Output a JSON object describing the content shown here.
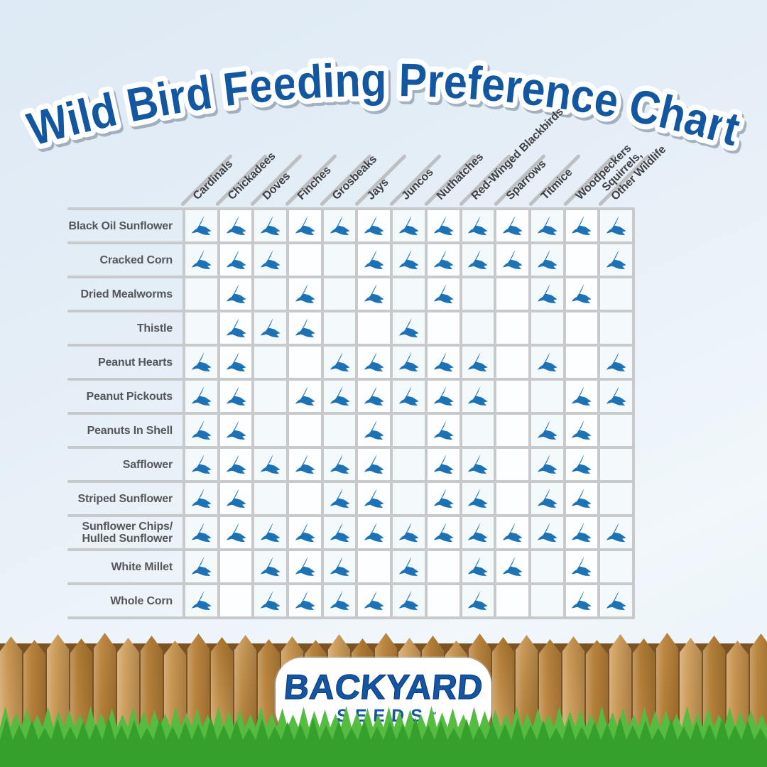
{
  "title": "Wild Bird Feeding Preference Chart",
  "logo": {
    "brand": "BACKYARD",
    "sub": "SEEDS",
    "trademark": "™"
  },
  "colors": {
    "title_blue": "#1257a0",
    "bird_blue": "#1c72b4",
    "grid_line": "#c7c9cb",
    "row_label_gray": "#55565a",
    "column_label_gray": "#3f4044",
    "logo_blue": "#1456a4",
    "grass_green_back": "#55bb41",
    "grass_green_front": "#35a02b",
    "sky_blue": "#e3edf6"
  },
  "chart_data": {
    "type": "heatmap",
    "title": "Wild Bird Feeding Preference Chart",
    "marker": "bird-icon",
    "marker_meaning": "bird icon in a cell = that species eats this food",
    "columns": [
      "Cardinals",
      "Chickadees",
      "Doves",
      "Finches",
      "Grosbeaks",
      "Jays",
      "Juncos",
      "Nuthatches",
      "Red-Winged Blackbirds",
      "Sparrows",
      "Titmice",
      "Woodpeckers",
      "Squirrels,\nOther Wildlife"
    ],
    "rows": [
      "Black Oil Sunflower",
      "Cracked Corn",
      "Dried Mealworms",
      "Thistle",
      "Peanut Hearts",
      "Peanut Pickouts",
      "Peanuts In Shell",
      "Safflower",
      "Striped Sunflower",
      "Sunflower Chips/\nHulled Sunflower",
      "White Millet",
      "Whole Corn"
    ],
    "matrix": [
      [
        1,
        1,
        1,
        1,
        1,
        1,
        1,
        1,
        1,
        1,
        1,
        1,
        1
      ],
      [
        1,
        1,
        1,
        0,
        0,
        1,
        1,
        1,
        1,
        1,
        1,
        0,
        1
      ],
      [
        0,
        1,
        0,
        1,
        0,
        1,
        0,
        1,
        0,
        0,
        1,
        1,
        0
      ],
      [
        0,
        1,
        1,
        1,
        0,
        0,
        1,
        0,
        0,
        0,
        0,
        0,
        0
      ],
      [
        1,
        1,
        0,
        0,
        1,
        1,
        1,
        1,
        1,
        0,
        1,
        0,
        1
      ],
      [
        1,
        1,
        0,
        1,
        1,
        1,
        1,
        1,
        1,
        0,
        0,
        1,
        1
      ],
      [
        1,
        1,
        0,
        0,
        0,
        1,
        0,
        1,
        0,
        0,
        1,
        1,
        0
      ],
      [
        1,
        1,
        1,
        1,
        1,
        1,
        0,
        1,
        1,
        0,
        1,
        1,
        0
      ],
      [
        1,
        1,
        0,
        0,
        1,
        1,
        0,
        1,
        1,
        0,
        1,
        1,
        0
      ],
      [
        1,
        1,
        1,
        1,
        1,
        1,
        1,
        1,
        1,
        1,
        1,
        1,
        1
      ],
      [
        1,
        0,
        1,
        1,
        1,
        0,
        1,
        0,
        1,
        1,
        0,
        1,
        0
      ],
      [
        1,
        0,
        1,
        1,
        1,
        1,
        1,
        0,
        1,
        0,
        0,
        1,
        1
      ]
    ]
  }
}
